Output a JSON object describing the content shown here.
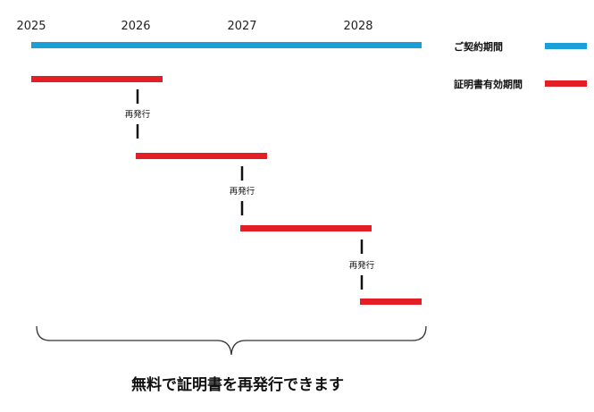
{
  "years": [
    "2025",
    "2026",
    "2027",
    "2028"
  ],
  "legend": {
    "contract": {
      "label": "ご契約期間",
      "color": "#1b9fd9"
    },
    "certificate": {
      "label": "証明書有効期間",
      "color": "#e31e24"
    }
  },
  "reissue_label": "再発行",
  "caption": "無料で証明書を再発行できます"
}
